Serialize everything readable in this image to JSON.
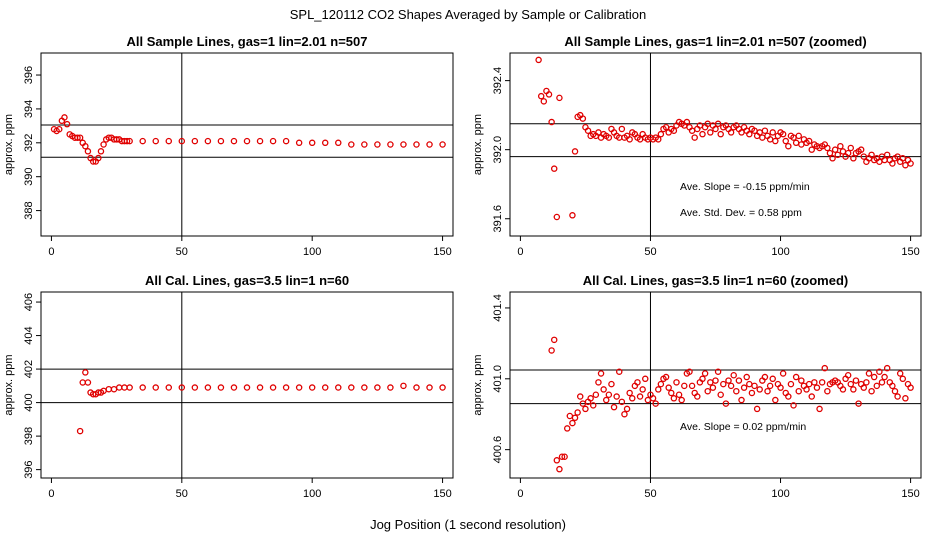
{
  "figure": {
    "title": "SPL_120112  CO2 Shapes Averaged by Sample or Calibration",
    "xlabel": "Jog Position (1 second resolution)",
    "colors": {
      "points": "#e00000",
      "lines": "#000000",
      "background": "#ffffff"
    }
  },
  "chart_data": [
    {
      "type": "scatter",
      "title": "All Sample Lines, gas=1 lin=2.01 n=507",
      "ylabel": "approx. ppm",
      "xlim": [
        -4,
        154
      ],
      "ylim": [
        386.5,
        397.3
      ],
      "xticks": [
        "0",
        "50",
        "100",
        "150"
      ],
      "yticks": [
        "388",
        "390",
        "392",
        "394",
        "396"
      ],
      "vlines": [
        50
      ],
      "hlines": [
        391.15,
        393.05
      ],
      "annotations": [],
      "series": [
        {
          "x": [
            1,
            2,
            3,
            4,
            5,
            6,
            7,
            8,
            9,
            10,
            11,
            12,
            13,
            14,
            15,
            16,
            17,
            18,
            19,
            20,
            21,
            22,
            23,
            24,
            25,
            26,
            27,
            28,
            29,
            30,
            35,
            40,
            45,
            50,
            55,
            60,
            65,
            70,
            75,
            80,
            85,
            90,
            95,
            100,
            105,
            110,
            115,
            120,
            125,
            130,
            135,
            140,
            145,
            150
          ],
          "y": [
            392.8,
            392.7,
            392.8,
            393.3,
            393.5,
            393.1,
            392.5,
            392.4,
            392.3,
            392.3,
            392.3,
            392.0,
            391.8,
            391.5,
            391.1,
            390.9,
            390.9,
            391.1,
            391.5,
            391.9,
            392.2,
            392.3,
            392.3,
            392.2,
            392.2,
            392.2,
            392.1,
            392.1,
            392.1,
            392.1,
            392.1,
            392.1,
            392.1,
            392.1,
            392.1,
            392.1,
            392.1,
            392.1,
            392.1,
            392.1,
            392.1,
            392.1,
            392.0,
            392.0,
            392.0,
            392.0,
            391.9,
            391.9,
            391.9,
            391.9,
            391.9,
            391.9,
            391.9,
            391.9
          ]
        }
      ]
    },
    {
      "type": "scatter",
      "title": "All Sample Lines, gas=1 lin=2.01 n=507 (zoomed)",
      "ylabel": "approx. ppm",
      "xlim": [
        -4,
        154
      ],
      "ylim": [
        391.5,
        392.56
      ],
      "xticks": [
        "0",
        "50",
        "100",
        "150"
      ],
      "yticks": [
        "391.6",
        "392.0",
        "392.4"
      ],
      "vlines": [
        50
      ],
      "hlines": [
        392.15,
        391.96
      ],
      "annotations": [
        "Ave. Slope =  -0.15  ppm/min",
        "Ave. Std. Dev. =  0.58  ppm"
      ],
      "series": [
        {
          "x": [
            7,
            8,
            9,
            10,
            11,
            12,
            13,
            14,
            15,
            20,
            21,
            22,
            23,
            24,
            25,
            26,
            27,
            28,
            29,
            30,
            31,
            32,
            33,
            34,
            35,
            36,
            37,
            38,
            39,
            40,
            41,
            42,
            43,
            44,
            45,
            46,
            47,
            48,
            49,
            50,
            51,
            52,
            53,
            54,
            55,
            56,
            57,
            58,
            59,
            60,
            61,
            62,
            63,
            64,
            65,
            66,
            67,
            68,
            69,
            70,
            71,
            72,
            73,
            74,
            75,
            76,
            77,
            78,
            79,
            80,
            81,
            82,
            83,
            84,
            85,
            86,
            87,
            88,
            89,
            90,
            91,
            92,
            93,
            94,
            95,
            96,
            97,
            98,
            99,
            100,
            101,
            102,
            103,
            104,
            105,
            106,
            107,
            108,
            109,
            110,
            111,
            112,
            113,
            114,
            115,
            116,
            117,
            118,
            119,
            120,
            121,
            122,
            123,
            124,
            125,
            126,
            127,
            128,
            129,
            130,
            131,
            132,
            133,
            134,
            135,
            136,
            137,
            138,
            139,
            140,
            141,
            142,
            143,
            144,
            145,
            146,
            147,
            148,
            149,
            150
          ],
          "y": [
            392.52,
            392.31,
            392.28,
            392.34,
            392.32,
            392.16,
            391.89,
            391.61,
            392.3,
            391.62,
            391.99,
            392.19,
            392.2,
            392.18,
            392.13,
            392.11,
            392.08,
            392.09,
            392.08,
            392.1,
            392.07,
            392.09,
            392.08,
            392.07,
            392.12,
            392.1,
            392.08,
            392.07,
            392.12,
            392.07,
            392.08,
            392.06,
            392.1,
            392.09,
            392.07,
            392.06,
            392.09,
            392.07,
            392.06,
            392.07,
            392.06,
            392.07,
            392.06,
            392.09,
            392.12,
            392.13,
            392.1,
            392.12,
            392.11,
            392.14,
            392.16,
            392.15,
            392.14,
            392.16,
            392.13,
            392.11,
            392.07,
            392.12,
            392.14,
            392.09,
            392.13,
            392.15,
            392.1,
            392.14,
            392.12,
            392.15,
            392.09,
            392.13,
            392.14,
            392.12,
            392.1,
            392.13,
            392.14,
            392.12,
            392.1,
            392.13,
            392.11,
            392.09,
            392.12,
            392.11,
            392.08,
            392.1,
            392.07,
            392.11,
            392.08,
            392.06,
            392.1,
            392.05,
            392.08,
            392.1,
            392.09,
            392.05,
            392.02,
            392.08,
            392.07,
            392.04,
            392.08,
            392.03,
            392.06,
            392.04,
            392.05,
            392.0,
            392.03,
            392.02,
            392.01,
            392.02,
            392.03,
            392.01,
            391.98,
            391.95,
            392.0,
            391.97,
            392.02,
            391.99,
            391.96,
            391.98,
            392.01,
            391.95,
            391.98,
            391.99,
            392.0,
            391.96,
            391.93,
            391.95,
            391.97,
            391.94,
            391.95,
            391.93,
            391.96,
            391.94,
            391.97,
            391.94,
            391.92,
            391.95,
            391.96,
            391.93,
            391.95,
            391.91,
            391.94,
            391.92
          ]
        }
      ]
    },
    {
      "type": "scatter",
      "title": "All Cal. Lines, gas=3.5 lin=1 n=60",
      "ylabel": "approx. ppm",
      "xlim": [
        -4,
        154
      ],
      "ylim": [
        395.5,
        406.6
      ],
      "xticks": [
        "0",
        "50",
        "100",
        "150"
      ],
      "yticks": [
        "396",
        "398",
        "400",
        "402",
        "404",
        "406"
      ],
      "vlines": [
        50
      ],
      "hlines": [
        402.0,
        400.0
      ],
      "annotations": [],
      "series": [
        {
          "x": [
            11,
            12,
            13,
            14,
            15,
            16,
            17,
            18,
            19,
            20,
            22,
            24,
            26,
            28,
            30,
            35,
            40,
            45,
            50,
            55,
            60,
            65,
            70,
            75,
            80,
            85,
            90,
            95,
            100,
            105,
            110,
            115,
            120,
            125,
            130,
            135,
            140,
            145,
            150
          ],
          "y": [
            398.3,
            401.2,
            401.8,
            401.2,
            400.6,
            400.5,
            400.5,
            400.6,
            400.6,
            400.7,
            400.8,
            400.8,
            400.9,
            400.9,
            400.9,
            400.9,
            400.9,
            400.9,
            400.9,
            400.9,
            400.9,
            400.9,
            400.9,
            400.9,
            400.9,
            400.9,
            400.9,
            400.9,
            400.9,
            400.9,
            400.9,
            400.9,
            400.9,
            400.9,
            400.9,
            401.0,
            400.9,
            400.9,
            400.9
          ]
        }
      ]
    },
    {
      "type": "scatter",
      "title": "All Cal. Lines, gas=3.5 lin=1 n=60 (zoomed)",
      "ylabel": "approx. ppm",
      "xlim": [
        -4,
        154
      ],
      "ylim": [
        400.44,
        401.49
      ],
      "xticks": [
        "0",
        "50",
        "100",
        "150"
      ],
      "yticks": [
        "400.6",
        "401.0",
        "401.4"
      ],
      "vlines": [
        50
      ],
      "hlines": [
        401.05,
        400.86
      ],
      "annotations": [
        "Ave. Slope =  0.02  ppm/min"
      ],
      "series": [
        {
          "x": [
            12,
            13,
            14,
            15,
            16,
            17,
            18,
            19,
            20,
            21,
            22,
            23,
            24,
            25,
            26,
            27,
            28,
            29,
            30,
            31,
            32,
            33,
            34,
            35,
            36,
            37,
            38,
            39,
            40,
            41,
            42,
            43,
            44,
            45,
            46,
            47,
            48,
            49,
            50,
            51,
            52,
            53,
            54,
            55,
            56,
            57,
            58,
            59,
            60,
            61,
            62,
            63,
            64,
            65,
            66,
            67,
            68,
            69,
            70,
            71,
            72,
            73,
            74,
            75,
            76,
            77,
            78,
            79,
            80,
            81,
            82,
            83,
            84,
            85,
            86,
            87,
            88,
            89,
            90,
            91,
            92,
            93,
            94,
            95,
            96,
            97,
            98,
            99,
            100,
            101,
            102,
            103,
            104,
            105,
            106,
            107,
            108,
            109,
            110,
            111,
            112,
            113,
            114,
            115,
            116,
            117,
            118,
            119,
            120,
            121,
            122,
            123,
            124,
            125,
            126,
            127,
            128,
            129,
            130,
            131,
            132,
            133,
            134,
            135,
            136,
            137,
            138,
            139,
            140,
            141,
            142,
            143,
            144,
            145,
            146,
            147,
            148,
            149,
            150
          ],
          "y": [
            401.16,
            401.22,
            400.54,
            400.49,
            400.56,
            400.56,
            400.72,
            400.79,
            400.75,
            400.78,
            400.81,
            400.9,
            400.86,
            400.83,
            400.87,
            400.89,
            400.85,
            400.91,
            400.98,
            401.03,
            400.94,
            400.88,
            400.91,
            400.97,
            400.84,
            400.9,
            401.04,
            400.87,
            400.8,
            400.83,
            400.92,
            400.89,
            400.96,
            400.98,
            400.9,
            400.94,
            401.0,
            400.88,
            400.91,
            400.89,
            400.86,
            400.94,
            400.97,
            401.0,
            401.01,
            400.95,
            400.92,
            400.89,
            400.98,
            400.91,
            400.88,
            400.96,
            401.03,
            401.04,
            400.96,
            400.92,
            400.9,
            400.98,
            401.0,
            401.03,
            400.93,
            400.98,
            400.95,
            400.99,
            401.04,
            400.91,
            400.97,
            400.86,
            400.99,
            400.96,
            401.02,
            400.93,
            400.99,
            400.88,
            400.95,
            401.01,
            400.97,
            400.92,
            400.96,
            400.83,
            400.94,
            400.99,
            401.01,
            400.93,
            400.96,
            401.0,
            400.88,
            400.97,
            400.95,
            401.03,
            400.92,
            400.9,
            400.97,
            400.85,
            401.01,
            400.93,
            400.99,
            400.96,
            400.94,
            400.97,
            400.9,
            400.98,
            400.95,
            400.83,
            400.98,
            401.06,
            400.93,
            400.97,
            400.98,
            400.99,
            400.98,
            400.96,
            400.94,
            401.0,
            401.02,
            400.97,
            400.94,
            400.99,
            400.86,
            400.97,
            400.95,
            400.98,
            401.03,
            400.93,
            401.01,
            400.96,
            401.04,
            400.98,
            401.01,
            401.06,
            400.98,
            400.96,
            400.93,
            400.9,
            401.03,
            401.0,
            400.89,
            400.97,
            400.95
          ]
        }
      ]
    }
  ]
}
